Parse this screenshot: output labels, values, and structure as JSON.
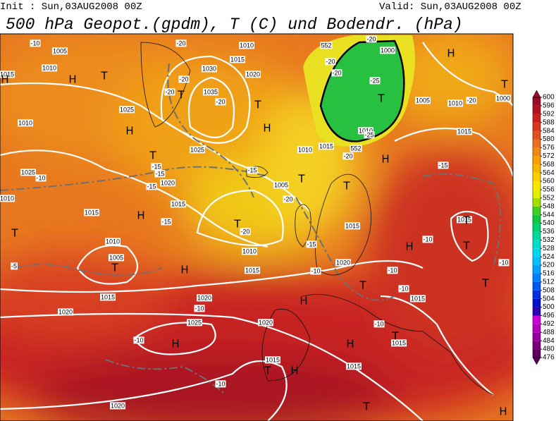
{
  "header": {
    "init": "Init : Sun,03AUG2008 00Z",
    "valid": "Valid: Sun,03AUG2008 00Z",
    "title": "500 hPa Geopot.(gpdm), T (C) und Bodendr. (hPa)"
  },
  "colorbar": {
    "labels": [
      476,
      480,
      484,
      488,
      492,
      496,
      500,
      504,
      508,
      512,
      516,
      520,
      524,
      528,
      532,
      536,
      540,
      544,
      548,
      552,
      556,
      560,
      564,
      568,
      572,
      576,
      580,
      584,
      588,
      592,
      596,
      600
    ],
    "colors": [
      "#5c005c",
      "#7a007a",
      "#96009a",
      "#b200b8",
      "#cc00d8",
      "#2a00b0",
      "#0010c8",
      "#0030e0",
      "#0058f0",
      "#0080ff",
      "#00a0ff",
      "#00c0ff",
      "#00d8f0",
      "#00e0c8",
      "#00d8a0",
      "#00d070",
      "#10c840",
      "#40d020",
      "#a0e000",
      "#e0f000",
      "#f8e800",
      "#f8d000",
      "#f8b800",
      "#f8a000",
      "#f08818",
      "#e87020",
      "#e05020",
      "#d83820",
      "#c82020",
      "#b01020",
      "#980c28"
    ]
  },
  "isobar_labels": [
    "1005",
    "1010",
    "1015",
    "1010",
    "1025",
    "1030",
    "1035",
    "1020",
    "1015",
    "1010",
    "1025",
    "1020",
    "1015",
    "1025",
    "1015",
    "1010",
    "1005",
    "1010",
    "1015",
    "1010",
    "1005",
    "1010",
    "1015",
    "1015",
    "1020",
    "1015",
    "1020",
    "1020",
    "1025",
    "1020",
    "1015",
    "1015",
    "1015",
    "1015",
    "1015",
    "1010",
    "1005",
    "1000",
    "1010",
    "1015",
    "1000",
    "1020"
  ],
  "temperature_labels": [
    "-10",
    "-10",
    "-5",
    "-15",
    "-15",
    "-15",
    "-15",
    "-15",
    "-20",
    "-20",
    "-20",
    "-20",
    "-20",
    "-20",
    "-20",
    "-25",
    "-25",
    "-20",
    "-20",
    "-20",
    "-15",
    "-10",
    "-10",
    "-10",
    "-10",
    "-10",
    "-10",
    "-10",
    "-10",
    "-10",
    "-20",
    "-15",
    "552",
    "552"
  ],
  "pressure_centers": [
    "H",
    "H",
    "H",
    "H",
    "H",
    "H",
    "H",
    "H",
    "H",
    "H",
    "H",
    "H",
    "H",
    "H",
    "T",
    "T",
    "T",
    "T",
    "T",
    "T",
    "T",
    "T",
    "T",
    "T",
    "T",
    "T",
    "T",
    "T",
    "T",
    "T",
    "T",
    "T"
  ]
}
